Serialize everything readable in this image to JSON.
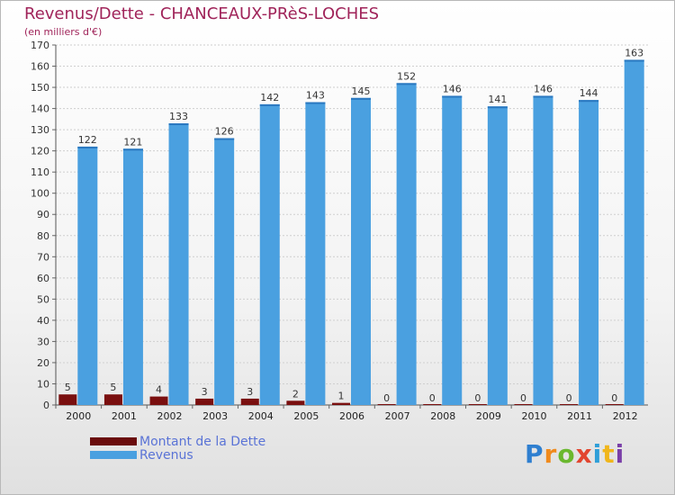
{
  "header": {
    "title": "Revenus/Dette - CHANCEAUX-PRèS-LOCHES",
    "subtitle": "(en milliers d'€)"
  },
  "legend": {
    "items": [
      {
        "label": "Montant de la Dette",
        "color": "#7a0f0f"
      },
      {
        "label": "Revenus",
        "color": "#4aa0e0"
      }
    ]
  },
  "logo": {
    "letters": [
      {
        "char": "P",
        "color": "#2f7fd0"
      },
      {
        "char": "r",
        "color": "#f08a1c"
      },
      {
        "char": "o",
        "color": "#6ab82e"
      },
      {
        "char": "x",
        "color": "#e2452f"
      },
      {
        "char": "i",
        "color": "#2f9fd8"
      },
      {
        "char": "t",
        "color": "#f0b61c"
      },
      {
        "char": "i",
        "color": "#7a3fa8"
      }
    ]
  },
  "chart_data": {
    "type": "bar",
    "title": "Revenus/Dette - CHANCEAUX-PRèS-LOCHES",
    "subtitle": "(en milliers d'€)",
    "categories": [
      "2000",
      "2001",
      "2002",
      "2003",
      "2004",
      "2005",
      "2006",
      "2007",
      "2008",
      "2009",
      "2010",
      "2011",
      "2012"
    ],
    "series": [
      {
        "name": "Montant de la Dette",
        "color": "#7a0f0f",
        "values": [
          5,
          5,
          4,
          3,
          3,
          2,
          1,
          0,
          0,
          0,
          0,
          0,
          0
        ]
      },
      {
        "name": "Revenus",
        "color": "#4aa0e0",
        "values": [
          122,
          121,
          133,
          126,
          142,
          143,
          145,
          152,
          146,
          141,
          146,
          144,
          163
        ]
      }
    ],
    "ylim": [
      0,
      170
    ],
    "yticks": [
      0,
      10,
      20,
      30,
      40,
      50,
      60,
      70,
      80,
      90,
      100,
      110,
      120,
      130,
      140,
      150,
      160,
      170
    ],
    "grid": true,
    "legend_position": "bottom-left"
  }
}
